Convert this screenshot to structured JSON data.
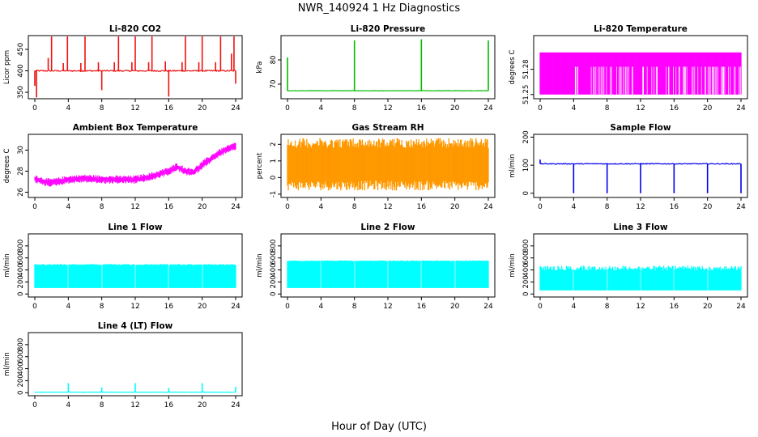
{
  "figure": {
    "title": "NWR_140924  1 Hz Diagnostics",
    "xlabel": "Hour of Day (UTC)",
    "x_ticks": [
      "0",
      "4",
      "8",
      "12",
      "16",
      "20",
      "24"
    ]
  },
  "chart_data": [
    {
      "type": "line",
      "title": "Li-820 CO2",
      "ylabel": "Licor ppm",
      "color": "#ee1111",
      "xlim": [
        0,
        24
      ],
      "ylim": [
        335,
        482
      ],
      "yticks": [
        "350",
        "400",
        "450"
      ],
      "base": 400,
      "noise": 3,
      "spikes": [
        {
          "x": 0.0,
          "y": 365
        },
        {
          "x": 0.2,
          "y": 338
        },
        {
          "x": 1.6,
          "y": 430
        },
        {
          "x": 2.0,
          "y": 480
        },
        {
          "x": 3.4,
          "y": 418
        },
        {
          "x": 3.9,
          "y": 480
        },
        {
          "x": 5.5,
          "y": 418
        },
        {
          "x": 6.0,
          "y": 480
        },
        {
          "x": 7.6,
          "y": 420
        },
        {
          "x": 8.0,
          "y": 355
        },
        {
          "x": 9.5,
          "y": 420
        },
        {
          "x": 10.0,
          "y": 480
        },
        {
          "x": 11.6,
          "y": 420
        },
        {
          "x": 12.0,
          "y": 480
        },
        {
          "x": 13.6,
          "y": 420
        },
        {
          "x": 14.0,
          "y": 480
        },
        {
          "x": 15.6,
          "y": 422
        },
        {
          "x": 16.0,
          "y": 340
        },
        {
          "x": 17.6,
          "y": 420
        },
        {
          "x": 18.0,
          "y": 480
        },
        {
          "x": 19.6,
          "y": 420
        },
        {
          "x": 20.0,
          "y": 480
        },
        {
          "x": 21.6,
          "y": 420
        },
        {
          "x": 22.2,
          "y": 480
        },
        {
          "x": 23.5,
          "y": 440
        },
        {
          "x": 23.8,
          "y": 480
        },
        {
          "x": 24.0,
          "y": 370
        }
      ]
    },
    {
      "type": "line",
      "title": "Li-820 Pressure",
      "ylabel": "kPa",
      "color": "#00bb00",
      "xlim": [
        0,
        24
      ],
      "ylim": [
        64,
        90
      ],
      "yticks": [
        "70",
        "80"
      ],
      "base": 67.3,
      "noise": 0.15,
      "spikes": [
        {
          "x": 0.0,
          "y": 81
        },
        {
          "x": 8.0,
          "y": 88
        },
        {
          "x": 16.0,
          "y": 88.5
        },
        {
          "x": 24.0,
          "y": 88
        }
      ]
    },
    {
      "type": "area",
      "title": "Li-820 Temperature",
      "ylabel": "degrees C",
      "color": "#ff00ff",
      "xlim": [
        0,
        24
      ],
      "ylim": [
        51.245,
        51.32
      ],
      "yticks": [
        "51.25",
        "51.28"
      ],
      "low": 51.25,
      "high": 51.3,
      "mid": 51.283,
      "dropouts": 80
    },
    {
      "type": "line",
      "title": "Ambient Box Temperature",
      "ylabel": "degrees C",
      "color": "#ff00ff",
      "xlim": [
        0,
        24
      ],
      "ylim": [
        25.5,
        31.5
      ],
      "yticks": [
        "26",
        "28",
        "30"
      ],
      "points": [
        {
          "x": 0,
          "y": 27.3
        },
        {
          "x": 1,
          "y": 27.0
        },
        {
          "x": 2,
          "y": 26.9
        },
        {
          "x": 4,
          "y": 27.2
        },
        {
          "x": 6,
          "y": 27.3
        },
        {
          "x": 8,
          "y": 27.2
        },
        {
          "x": 10,
          "y": 27.2
        },
        {
          "x": 12,
          "y": 27.2
        },
        {
          "x": 14,
          "y": 27.5
        },
        {
          "x": 16,
          "y": 28.0
        },
        {
          "x": 17,
          "y": 28.4
        },
        {
          "x": 18,
          "y": 28.0
        },
        {
          "x": 19,
          "y": 27.9
        },
        {
          "x": 20,
          "y": 28.6
        },
        {
          "x": 22,
          "y": 29.7
        },
        {
          "x": 24,
          "y": 30.4
        }
      ],
      "noise": 0.5
    },
    {
      "type": "area",
      "title": "Gas Stream RH",
      "ylabel": "percent",
      "color": "#ff9900",
      "xlim": [
        0,
        24
      ],
      "ylim": [
        -1.2,
        2.6
      ],
      "yticks": [
        "-1",
        "0",
        "1",
        "2"
      ],
      "low": -0.6,
      "high": 2.2,
      "mid": 0.8,
      "noise": 0.4
    },
    {
      "type": "line",
      "title": "Sample Flow",
      "ylabel": "ml/min",
      "color": "#0000ee",
      "xlim": [
        0,
        24
      ],
      "ylim": [
        -15,
        210
      ],
      "yticks": [
        "0",
        "100",
        "200"
      ],
      "base": 105,
      "noise": 3,
      "spikes": [
        {
          "x": 0.0,
          "y": 120
        },
        {
          "x": 4.0,
          "y": 0
        },
        {
          "x": 8.0,
          "y": 0
        },
        {
          "x": 12.0,
          "y": 0
        },
        {
          "x": 16.0,
          "y": 0
        },
        {
          "x": 20.0,
          "y": 0
        },
        {
          "x": 24.0,
          "y": 0
        }
      ]
    },
    {
      "type": "area",
      "title": "Line 1 Flow",
      "ylabel": "ml/min",
      "color": "#00ffff",
      "xlim": [
        0,
        24
      ],
      "ylim": [
        -50,
        1000
      ],
      "yticks": [
        "0",
        "200",
        "400",
        "600",
        "800"
      ],
      "low": 100,
      "high": 500,
      "gaps": [
        4,
        8,
        12,
        16,
        20
      ],
      "jitter": 20
    },
    {
      "type": "area",
      "title": "Line 2 Flow",
      "ylabel": "ml/min",
      "color": "#00ffff",
      "xlim": [
        0,
        24
      ],
      "ylim": [
        -50,
        1000
      ],
      "yticks": [
        "0",
        "200",
        "400",
        "600",
        "800"
      ],
      "low": 100,
      "high": 560,
      "gaps": [
        4,
        8,
        12,
        16,
        20
      ],
      "dropouts": 25,
      "jitter": 15
    },
    {
      "type": "area",
      "title": "Line 3 Flow",
      "ylabel": "ml/min",
      "color": "#00ffff",
      "xlim": [
        0,
        24
      ],
      "ylim": [
        -50,
        1000
      ],
      "yticks": [
        "0",
        "200",
        "400",
        "600",
        "800"
      ],
      "low": 60,
      "high": 470,
      "gaps": [
        4,
        8,
        12,
        16,
        20
      ],
      "jitter": 80
    },
    {
      "type": "line",
      "title": "Line 4 (LT) Flow",
      "ylabel": "ml/min",
      "color": "#00ffff",
      "xlim": [
        0,
        24
      ],
      "ylim": [
        -50,
        1000
      ],
      "yticks": [
        "0",
        "200",
        "400",
        "600",
        "800"
      ],
      "base": 10,
      "noise": 3,
      "spikes": [
        {
          "x": 4.0,
          "y": 160
        },
        {
          "x": 8.0,
          "y": 90
        },
        {
          "x": 12.0,
          "y": 160
        },
        {
          "x": 16.0,
          "y": 80
        },
        {
          "x": 20.0,
          "y": 160
        },
        {
          "x": 24.0,
          "y": 100
        }
      ]
    }
  ]
}
